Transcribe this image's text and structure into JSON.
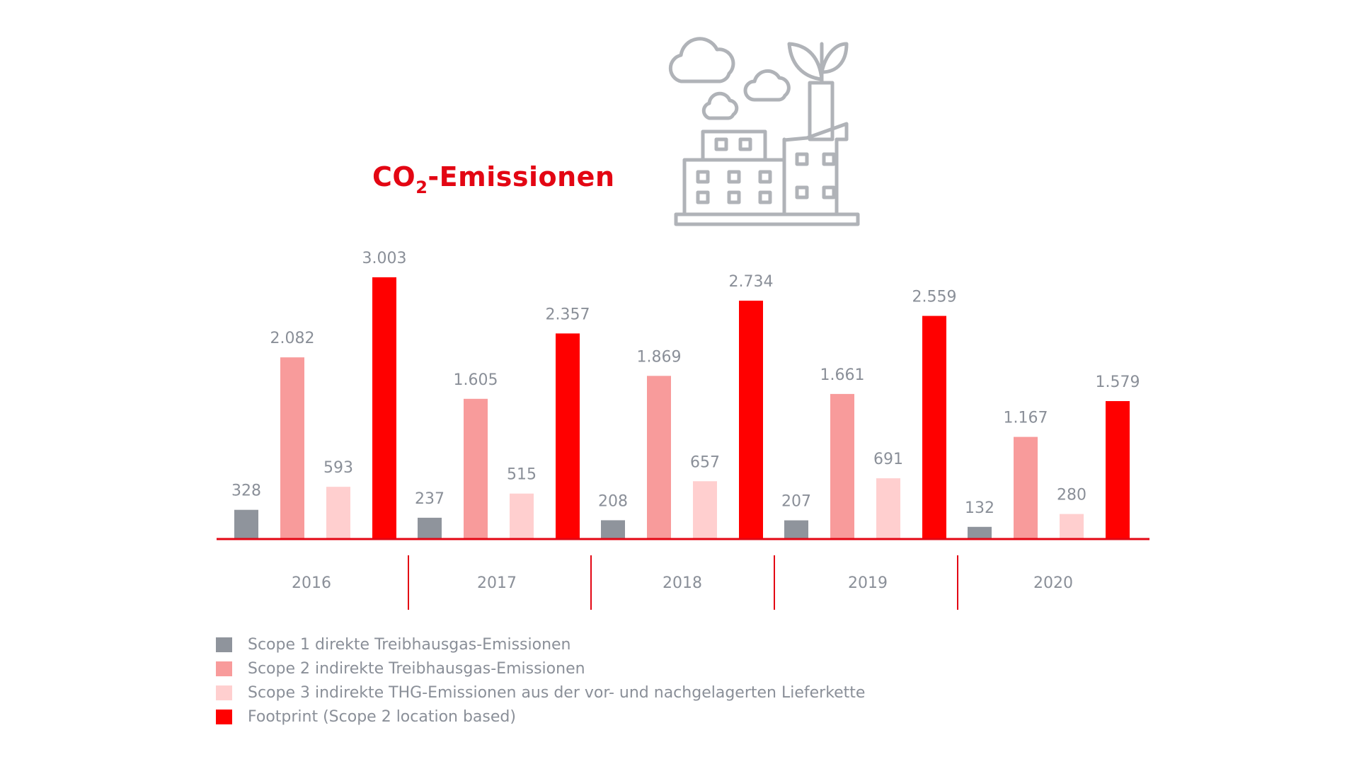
{
  "title": {
    "main": "CO",
    "subscript": "2",
    "suffix": "-Emissionen"
  },
  "icon": "factory-with-leaves-and-clouds-icon",
  "colors": {
    "scope1": "#8f949c",
    "scope2": "#f89b9b",
    "scope3": "#ffcfcf",
    "footprint": "#ff0000",
    "axis": "#e30613",
    "text": "#8a8f98",
    "icon": "#b0b3b8"
  },
  "chart_data": {
    "type": "bar",
    "categories": [
      "2016",
      "2017",
      "2018",
      "2019",
      "2020"
    ],
    "series": [
      {
        "name": "Scope 1 direkte Treibhausgas-Emissionen",
        "values": [
          328,
          237,
          208,
          207,
          132
        ],
        "labels": [
          "328",
          "237",
          "208",
          "207",
          "132"
        ]
      },
      {
        "name": "Scope 2 indirekte Treibhausgas-Emissionen",
        "values": [
          2082,
          1605,
          1869,
          1661,
          1167
        ],
        "labels": [
          "2.082",
          "1.605",
          "1.869",
          "1.661",
          "1.167"
        ]
      },
      {
        "name": "Scope 3 indirekte THG-Emissionen aus der vor- und nachgelagerten Lieferkette",
        "values": [
          593,
          515,
          657,
          691,
          280
        ],
        "labels": [
          "593",
          "515",
          "657",
          "691",
          "280"
        ]
      },
      {
        "name": "Footprint (Scope 2 location based)",
        "values": [
          3003,
          2357,
          2734,
          2559,
          1579
        ],
        "labels": [
          "3.003",
          "2.357",
          "2.734",
          "2.559",
          "1.579"
        ]
      }
    ],
    "ylim": [
      0,
      3003
    ],
    "grid": false,
    "legend_position": "bottom-left"
  }
}
